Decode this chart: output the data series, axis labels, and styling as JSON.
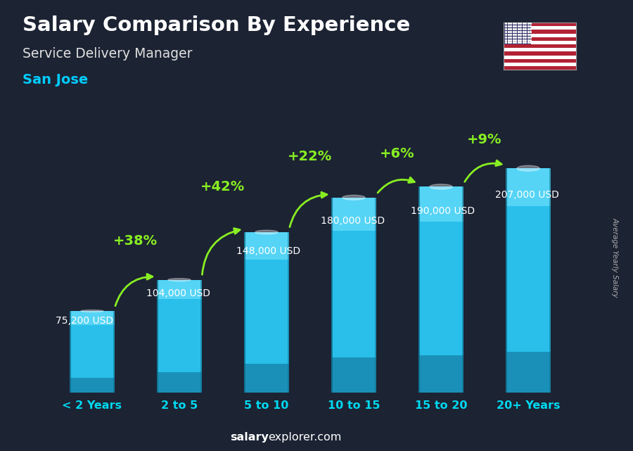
{
  "title": "Salary Comparison By Experience",
  "subtitle": "Service Delivery Manager",
  "city": "San Jose",
  "categories": [
    "< 2 Years",
    "2 to 5",
    "5 to 10",
    "10 to 15",
    "15 to 20",
    "20+ Years"
  ],
  "values": [
    75200,
    104000,
    148000,
    180000,
    190000,
    207000
  ],
  "labels": [
    "75,200 USD",
    "104,000 USD",
    "148,000 USD",
    "180,000 USD",
    "190,000 USD",
    "207,000 USD"
  ],
  "pct_labels": [
    "+38%",
    "+42%",
    "+22%",
    "+6%",
    "+9%"
  ],
  "bar_color_main": "#29bfea",
  "bar_color_light": "#55d4f5",
  "bar_color_dark": "#1a90b8",
  "bar_color_edge": "#0d6b8a",
  "bg_color": "#1c2333",
  "title_color": "#ffffff",
  "subtitle_color": "#e0e0e0",
  "city_color": "#00ccff",
  "label_color": "#ffffff",
  "pct_color": "#88ee22",
  "axis_label_color": "#aaaaaa",
  "xtick_color": "#00d8f0",
  "footer_bold": "salary",
  "footer_normal": "explorer.com",
  "ylabel_text": "Average Yearly Salary",
  "ylim_max": 250000,
  "bar_width": 0.52
}
